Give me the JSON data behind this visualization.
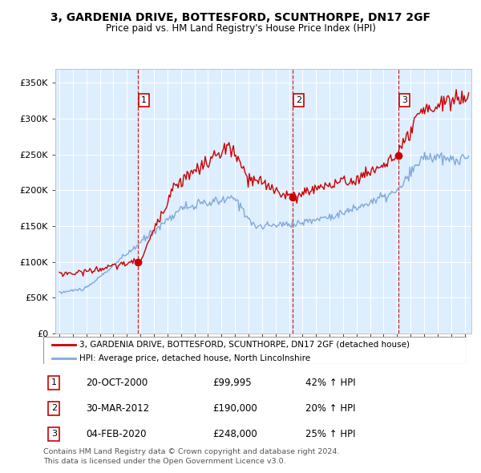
{
  "title_line1": "3, GARDENIA DRIVE, BOTTESFORD, SCUNTHORPE, DN17 2GF",
  "title_line2": "Price paid vs. HM Land Registry's House Price Index (HPI)",
  "hpi_color": "#7faadb",
  "price_color": "#cc0000",
  "plot_bg_color": "#ddeeff",
  "transactions": [
    {
      "num": 1,
      "date": "20-OCT-2000",
      "price": 99995,
      "year": 2000.8,
      "hpi_pct": "42% ↑ HPI"
    },
    {
      "num": 2,
      "date": "30-MAR-2012",
      "price": 190000,
      "year": 2012.25,
      "hpi_pct": "20% ↑ HPI"
    },
    {
      "num": 3,
      "date": "04-FEB-2020",
      "price": 248000,
      "year": 2020.1,
      "hpi_pct": "25% ↑ HPI"
    }
  ],
  "legend_label_price": "3, GARDENIA DRIVE, BOTTESFORD, SCUNTHORPE, DN17 2GF (detached house)",
  "legend_label_hpi": "HPI: Average price, detached house, North Lincolnshire",
  "footer_line1": "Contains HM Land Registry data © Crown copyright and database right 2024.",
  "footer_line2": "This data is licensed under the Open Government Licence v3.0.",
  "ylim": [
    0,
    370000
  ],
  "yticks": [
    0,
    50000,
    100000,
    150000,
    200000,
    250000,
    300000,
    350000
  ],
  "xmin": 1994.7,
  "xmax": 2025.5
}
